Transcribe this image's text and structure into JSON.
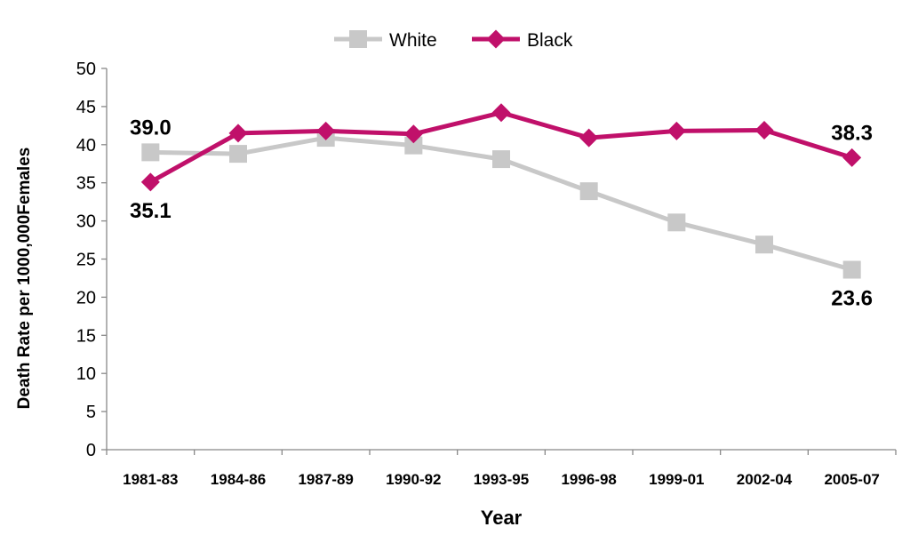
{
  "chart_data": {
    "type": "line",
    "categories": [
      "1981-83",
      "1984-86",
      "1987-89",
      "1990-92",
      "1993-95",
      "1996-98",
      "1999-01",
      "2002-04",
      "2005-07"
    ],
    "series": [
      {
        "name": "White",
        "color": "#c8c8c8",
        "marker": "square",
        "values": [
          39.0,
          38.8,
          40.9,
          39.9,
          38.1,
          33.9,
          29.8,
          26.9,
          23.6
        ]
      },
      {
        "name": "Black",
        "color": "#c0106a",
        "marker": "diamond",
        "values": [
          35.1,
          41.5,
          41.8,
          41.4,
          44.2,
          40.9,
          41.8,
          41.9,
          38.3
        ]
      }
    ],
    "xlabel": "Year",
    "ylabel": "Death Rate per 1000,000Females",
    "ylim": [
      0,
      50
    ],
    "yticks": [
      0,
      5,
      10,
      15,
      20,
      25,
      30,
      35,
      40,
      45,
      50
    ],
    "grid": false,
    "legend": "top-center",
    "data_labels": [
      {
        "series": "White",
        "index": 0,
        "text": "39.0",
        "position": "above"
      },
      {
        "series": "Black",
        "index": 0,
        "text": "35.1",
        "position": "below"
      },
      {
        "series": "Black",
        "index": 8,
        "text": "38.3",
        "position": "above"
      },
      {
        "series": "White",
        "index": 8,
        "text": "23.6",
        "position": "below"
      }
    ]
  }
}
